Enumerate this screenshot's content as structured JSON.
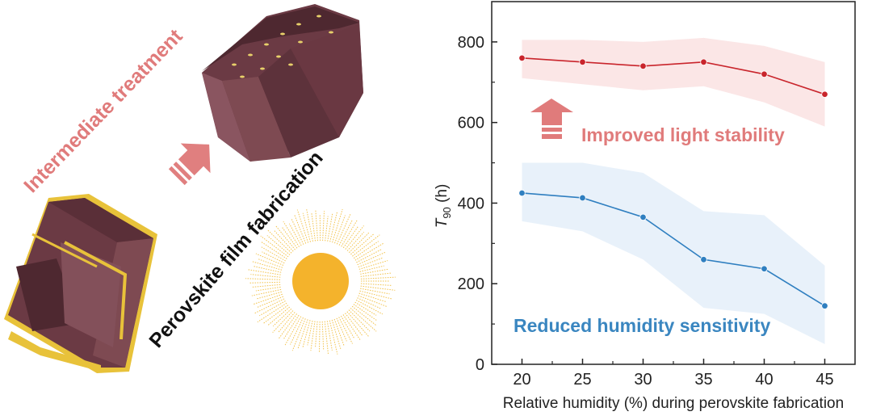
{
  "illustration": {
    "treatment_label": "Intermediate treatment",
    "fabrication_label": "Perovskite film fabrication",
    "colors": {
      "grain": "#6b3a44",
      "grain_side": "#7e4a52",
      "grain_top": "#5a2f38",
      "gold": "#e8c23a",
      "arrow": "#e07f7f",
      "sun": "#f4b32c"
    }
  },
  "chart_data": {
    "type": "line",
    "title": "",
    "xlabel": "Relative humidity (%) during perovskite fabrication",
    "ylabel_main": "T",
    "ylabel_sub": "90",
    "ylabel_unit": " (h)",
    "xlim": [
      17.5,
      47.5
    ],
    "ylim": [
      0,
      900
    ],
    "x": [
      20,
      25,
      30,
      35,
      40,
      45
    ],
    "xticks": [
      "20",
      "25",
      "30",
      "35",
      "40",
      "45"
    ],
    "yticks": [
      "0",
      "200",
      "400",
      "600",
      "800"
    ],
    "grid": false,
    "series": [
      {
        "name": "Improved light stability",
        "color": "#c9252c",
        "band_color": "#fbe3e3",
        "values": [
          760,
          750,
          740,
          750,
          720,
          670
        ],
        "band_upper": [
          805,
          805,
          800,
          810,
          790,
          750
        ],
        "band_lower": [
          710,
          695,
          680,
          690,
          650,
          590
        ]
      },
      {
        "name": "Reduced humidity sensitivity",
        "color": "#2f7fc0",
        "band_color": "#e6f0fa",
        "values": [
          425,
          413,
          365,
          260,
          237,
          145
        ],
        "band_upper": [
          500,
          500,
          475,
          380,
          370,
          245
        ],
        "band_lower": [
          355,
          330,
          260,
          140,
          125,
          50
        ]
      }
    ],
    "annotations": [
      {
        "text": "Improved light stability",
        "color": "#e07b7b"
      },
      {
        "text": "Reduced humidity sensitivity",
        "color": "#3a86c0"
      }
    ]
  }
}
